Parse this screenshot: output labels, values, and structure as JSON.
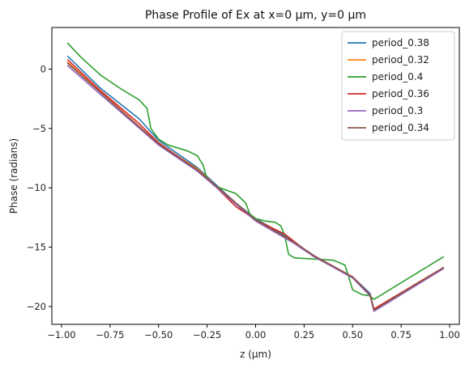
{
  "chart_data": {
    "type": "line",
    "title": "Phase Profile of Ex at x=0 µm, y=0 µm",
    "xlabel": "z (µm)",
    "ylabel": "Phase (radians)",
    "xlim": [
      -1.05,
      1.05
    ],
    "ylim": [
      -21.5,
      3.5
    ],
    "xticks": [
      -1.0,
      -0.75,
      -0.5,
      -0.25,
      0.0,
      0.25,
      0.5,
      0.75,
      1.0
    ],
    "xtick_labels": [
      "−1.00",
      "−0.75",
      "−0.50",
      "−0.25",
      "0.00",
      "0.25",
      "0.50",
      "0.75",
      "1.00"
    ],
    "yticks": [
      0,
      -5,
      -10,
      -15,
      -20
    ],
    "ytick_labels": [
      "0",
      "−5",
      "−10",
      "−15",
      "−20"
    ],
    "grid": false,
    "legend_position": "top-right",
    "series": [
      {
        "name": "period_0.38",
        "color": "#1f77b4",
        "x": [
          -0.97,
          -0.8,
          -0.6,
          -0.5,
          -0.3,
          -0.22,
          -0.1,
          0.0,
          0.15,
          0.3,
          0.5,
          0.59,
          0.61,
          0.97
        ],
        "y": [
          1.1,
          -1.6,
          -4.2,
          -6.0,
          -8.3,
          -9.5,
          -11.3,
          -12.6,
          -14.0,
          -15.8,
          -17.5,
          -18.9,
          -20.3,
          -16.8
        ]
      },
      {
        "name": "period_0.32",
        "color": "#ff7f0e",
        "x": [
          -0.97,
          -0.5,
          -0.3,
          -0.2,
          0.0,
          0.2,
          0.3,
          0.5,
          0.59,
          0.61,
          0.97
        ],
        "y": [
          0.6,
          -6.3,
          -8.4,
          -9.9,
          -12.7,
          -14.6,
          -15.7,
          -17.5,
          -19.0,
          -20.3,
          -16.8
        ]
      },
      {
        "name": "period_0.4",
        "color": "#2ca02c",
        "x": [
          -0.97,
          -0.9,
          -0.8,
          -0.7,
          -0.6,
          -0.56,
          -0.54,
          -0.5,
          -0.45,
          -0.35,
          -0.3,
          -0.27,
          -0.25,
          -0.2,
          -0.15,
          -0.1,
          -0.05,
          -0.03,
          0.0,
          0.05,
          0.1,
          0.13,
          0.15,
          0.17,
          0.2,
          0.3,
          0.4,
          0.46,
          0.48,
          0.5,
          0.55,
          0.59,
          0.61,
          0.97
        ],
        "y": [
          2.2,
          1.0,
          -0.5,
          -1.6,
          -2.6,
          -3.3,
          -5.0,
          -5.9,
          -6.4,
          -6.9,
          -7.3,
          -8.1,
          -9.3,
          -9.9,
          -10.2,
          -10.5,
          -11.3,
          -12.2,
          -12.6,
          -12.8,
          -12.9,
          -13.2,
          -14.0,
          -15.6,
          -15.9,
          -16.0,
          -16.1,
          -16.5,
          -17.5,
          -18.6,
          -19.0,
          -19.1,
          -19.4,
          -15.8
        ]
      },
      {
        "name": "period_0.36",
        "color": "#d62728",
        "x": [
          -0.97,
          -0.8,
          -0.6,
          -0.5,
          -0.3,
          -0.2,
          -0.1,
          0.0,
          0.15,
          0.3,
          0.5,
          0.59,
          0.61,
          0.97
        ],
        "y": [
          0.8,
          -1.8,
          -4.6,
          -6.2,
          -8.5,
          -10.0,
          -11.6,
          -12.7,
          -13.9,
          -15.8,
          -17.5,
          -19.0,
          -20.2,
          -16.7
        ]
      },
      {
        "name": "period_0.3",
        "color": "#9467bd",
        "x": [
          -0.97,
          -0.5,
          -0.3,
          -0.2,
          0.0,
          0.2,
          0.3,
          0.5,
          0.59,
          0.61,
          0.97
        ],
        "y": [
          0.3,
          -6.4,
          -8.6,
          -10.0,
          -12.8,
          -14.7,
          -15.8,
          -17.6,
          -19.1,
          -20.4,
          -16.8
        ]
      },
      {
        "name": "period_0.34",
        "color": "#8c564b",
        "x": [
          -0.97,
          -0.5,
          -0.3,
          -0.2,
          0.0,
          0.2,
          0.3,
          0.5,
          0.59,
          0.61,
          0.97
        ],
        "y": [
          0.5,
          -6.3,
          -8.5,
          -9.9,
          -12.7,
          -14.6,
          -15.7,
          -17.5,
          -19.0,
          -20.3,
          -16.7
        ]
      }
    ]
  }
}
